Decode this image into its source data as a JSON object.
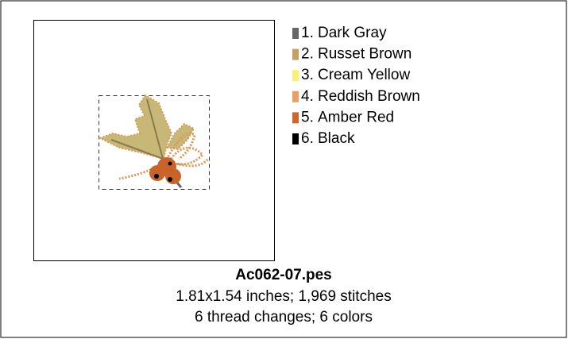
{
  "design": {
    "filename": "Ac062-07.pes",
    "details": [
      "1.81x1.54 inches; 1,969 stitches",
      "6 thread changes; 6 colors"
    ],
    "threads": [
      {
        "number": "1.",
        "name": "Dark Gray",
        "color": "#666666"
      },
      {
        "number": "2.",
        "name": "Russet Brown",
        "color": "#c4a064"
      },
      {
        "number": "3.",
        "name": "Cream Yellow",
        "color": "#f8f07c"
      },
      {
        "number": "4.",
        "name": "Reddish Brown",
        "color": "#e8a064"
      },
      {
        "number": "5.",
        "name": "Amber Red",
        "color": "#d0642a"
      },
      {
        "number": "6.",
        "name": "Black",
        "color": "#000000"
      }
    ]
  }
}
